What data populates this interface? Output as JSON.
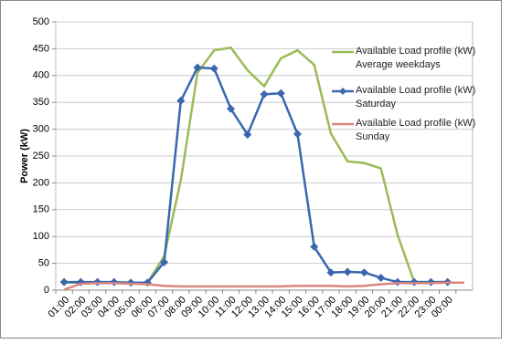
{
  "chart_data": {
    "type": "line",
    "y_label": "Power (kW)",
    "categories": [
      "01:00",
      "02:00",
      "03:00",
      "04:00",
      "05:00",
      "06:00",
      "07:00",
      "08:00",
      "09:00",
      "10:00",
      "11:00",
      "12:00",
      "13:00",
      "14:00",
      "15:00",
      "16:00",
      "17:00",
      "18:00",
      "19:00",
      "20:00",
      "21:00",
      "22:00",
      "23:00",
      "00:00",
      null
    ],
    "series": [
      {
        "name": "Available Load profile (kW) Average weekdays",
        "color": "#9bbb59",
        "marker": "none",
        "values": [
          14,
          14,
          14,
          14,
          14,
          14,
          63,
          205,
          405,
          447,
          452,
          410,
          380,
          432,
          447,
          420,
          292,
          240,
          237,
          227,
          103,
          15,
          15,
          15,
          null
        ]
      },
      {
        "name": "Available Load profile (kW) Saturday",
        "color": "#3a67ae",
        "marker": "diamond",
        "values": [
          15,
          15,
          15,
          15,
          14,
          14,
          52,
          353,
          415,
          413,
          338,
          290,
          365,
          367,
          291,
          81,
          33,
          34,
          33,
          23,
          15,
          15,
          15,
          15,
          null
        ]
      },
      {
        "name": "Available Load profile (kW) Sunday",
        "color": "#d98580",
        "marker": "none",
        "values": [
          1,
          12,
          13,
          13,
          12,
          11,
          8,
          7,
          7,
          7,
          7,
          7,
          7,
          7,
          8,
          8,
          8,
          7,
          8,
          11,
          13,
          13,
          13,
          14,
          14
        ]
      }
    ],
    "ylim": [
      0,
      500
    ],
    "yticks": [
      0,
      50,
      100,
      150,
      200,
      250,
      300,
      350,
      400,
      450,
      500
    ],
    "grid": true
  }
}
